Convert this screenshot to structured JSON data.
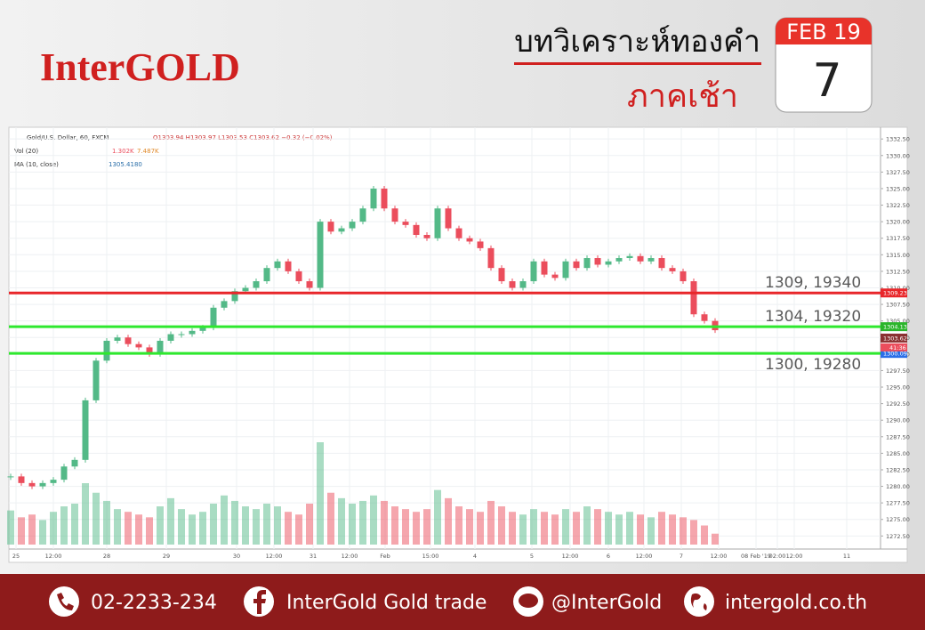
{
  "header": {
    "logo": "InterGOLD",
    "title": "บทวิเคราะห์ทองคำ",
    "subtitle": "ภาคเช้า",
    "calendar_month": "FEB 19",
    "calendar_day": "7"
  },
  "chart_data": {
    "type": "candlestick",
    "symbol": "Gold/U.S. Dollar, 60, FXCM",
    "ohlc_text": "O1303.94 H1303.97 L1303.53 C1303.62 −0.32 (−0.02%)",
    "vol_label": "Vol (20)",
    "vol_values": [
      "1.302K",
      "7.487K"
    ],
    "ma_label": "MA (10, close)",
    "ma_value": "1305.4180",
    "up_color": "#53b987",
    "down_color": "#eb4d5c",
    "close": [
      1281.5,
      1280.5,
      1280,
      1280.5,
      1281,
      1283,
      1284,
      1293,
      1299,
      1302,
      1302.5,
      1301.5,
      1301,
      1300,
      1302,
      1303,
      1303,
      1303.5,
      1304,
      1307,
      1308,
      1309.5,
      1310,
      1311,
      1313,
      1314,
      1312.5,
      1311,
      1310,
      1320,
      1318.5,
      1319,
      1320,
      1322,
      1325,
      1322,
      1320,
      1319.5,
      1318,
      1317.5,
      1322,
      1319,
      1317.5,
      1317,
      1316,
      1313,
      1311,
      1310,
      1311,
      1314,
      1312,
      1311.5,
      1314,
      1313,
      1314.5,
      1313.5,
      1314,
      1314.5,
      1314.8,
      1314,
      1314.5,
      1313,
      1312.5,
      1311,
      1306,
      1305,
      1303.6
    ],
    "volume": [
      2.5,
      2,
      2.2,
      1.8,
      2.4,
      2.8,
      3,
      4.5,
      3.8,
      3.2,
      2.6,
      2.4,
      2.2,
      2,
      2.8,
      3.4,
      2.6,
      2.2,
      2.4,
      3,
      3.6,
      3.2,
      2.8,
      2.6,
      3,
      2.8,
      2.4,
      2.2,
      3,
      7.5,
      3.8,
      3.4,
      3,
      3.2,
      3.6,
      3.2,
      2.8,
      2.6,
      2.4,
      2.6,
      4,
      3.4,
      2.8,
      2.6,
      2.4,
      3.2,
      2.8,
      2.4,
      2.2,
      2.6,
      2.4,
      2.2,
      2.6,
      2.4,
      2.8,
      2.6,
      2.4,
      2.2,
      2.4,
      2.2,
      2,
      2.4,
      2.2,
      2,
      1.8,
      1.4,
      0.8
    ],
    "ylim": [
      1271.2,
      1333.6
    ],
    "yticks": [
      {
        "value": 1272.5,
        "label": "1272.50"
      },
      {
        "value": 1275,
        "label": "1275.00"
      },
      {
        "value": 1277.5,
        "label": "1277.50"
      },
      {
        "value": 1280,
        "label": "1280.00"
      },
      {
        "value": 1282.5,
        "label": "1282.50"
      },
      {
        "value": 1285,
        "label": "1285.00"
      },
      {
        "value": 1287.5,
        "label": "1287.50"
      },
      {
        "value": 1290,
        "label": "1290.00"
      },
      {
        "value": 1292.5,
        "label": "1292.50"
      },
      {
        "value": 1295,
        "label": "1295.00"
      },
      {
        "value": 1297.5,
        "label": "1297.50"
      },
      {
        "value": 1300,
        "label": "1300.00"
      },
      {
        "value": 1302.5,
        "label": "1302.50"
      },
      {
        "value": 1305,
        "label": "1305.00"
      },
      {
        "value": 1307.5,
        "label": "1307.50"
      },
      {
        "value": 1310,
        "label": "1310.00"
      },
      {
        "value": 1312.5,
        "label": "1312.50"
      },
      {
        "value": 1315,
        "label": "1315.00"
      },
      {
        "value": 1317.5,
        "label": "1317.50"
      },
      {
        "value": 1320,
        "label": "1320.00"
      },
      {
        "value": 1322.5,
        "label": "1322.50"
      },
      {
        "value": 1325,
        "label": "1325.00"
      },
      {
        "value": 1327.5,
        "label": "1327.50"
      },
      {
        "value": 1330,
        "label": "1330.00"
      },
      {
        "value": 1332.5,
        "label": "1332.50"
      }
    ],
    "x_labels": [
      "25",
      "12:00",
      "28",
      "29",
      "30",
      "12:00",
      "31",
      "12:00",
      "Feb",
      "15:00",
      "4",
      "5",
      "12:00",
      "6",
      "12:00",
      "7",
      "12:00",
      "08 Feb '19",
      "02:00",
      "12:00",
      "11"
    ],
    "levels": [
      {
        "value": 1309.23,
        "annotation": "1309, 19340",
        "color": "#e8262a"
      },
      {
        "value": 1304.13,
        "annotation": "1304, 19320",
        "color": "#2ee82e"
      },
      {
        "value": 1300.09,
        "annotation": "1300, 19280",
        "color": "#2ee82e"
      }
    ],
    "last_price": 1303.62,
    "countdown": "41:36",
    "grid": true
  },
  "footer": {
    "phone": "02-2233-234",
    "facebook": "InterGold Gold trade",
    "line": "@InterGold",
    "web": "intergold.co.th"
  }
}
